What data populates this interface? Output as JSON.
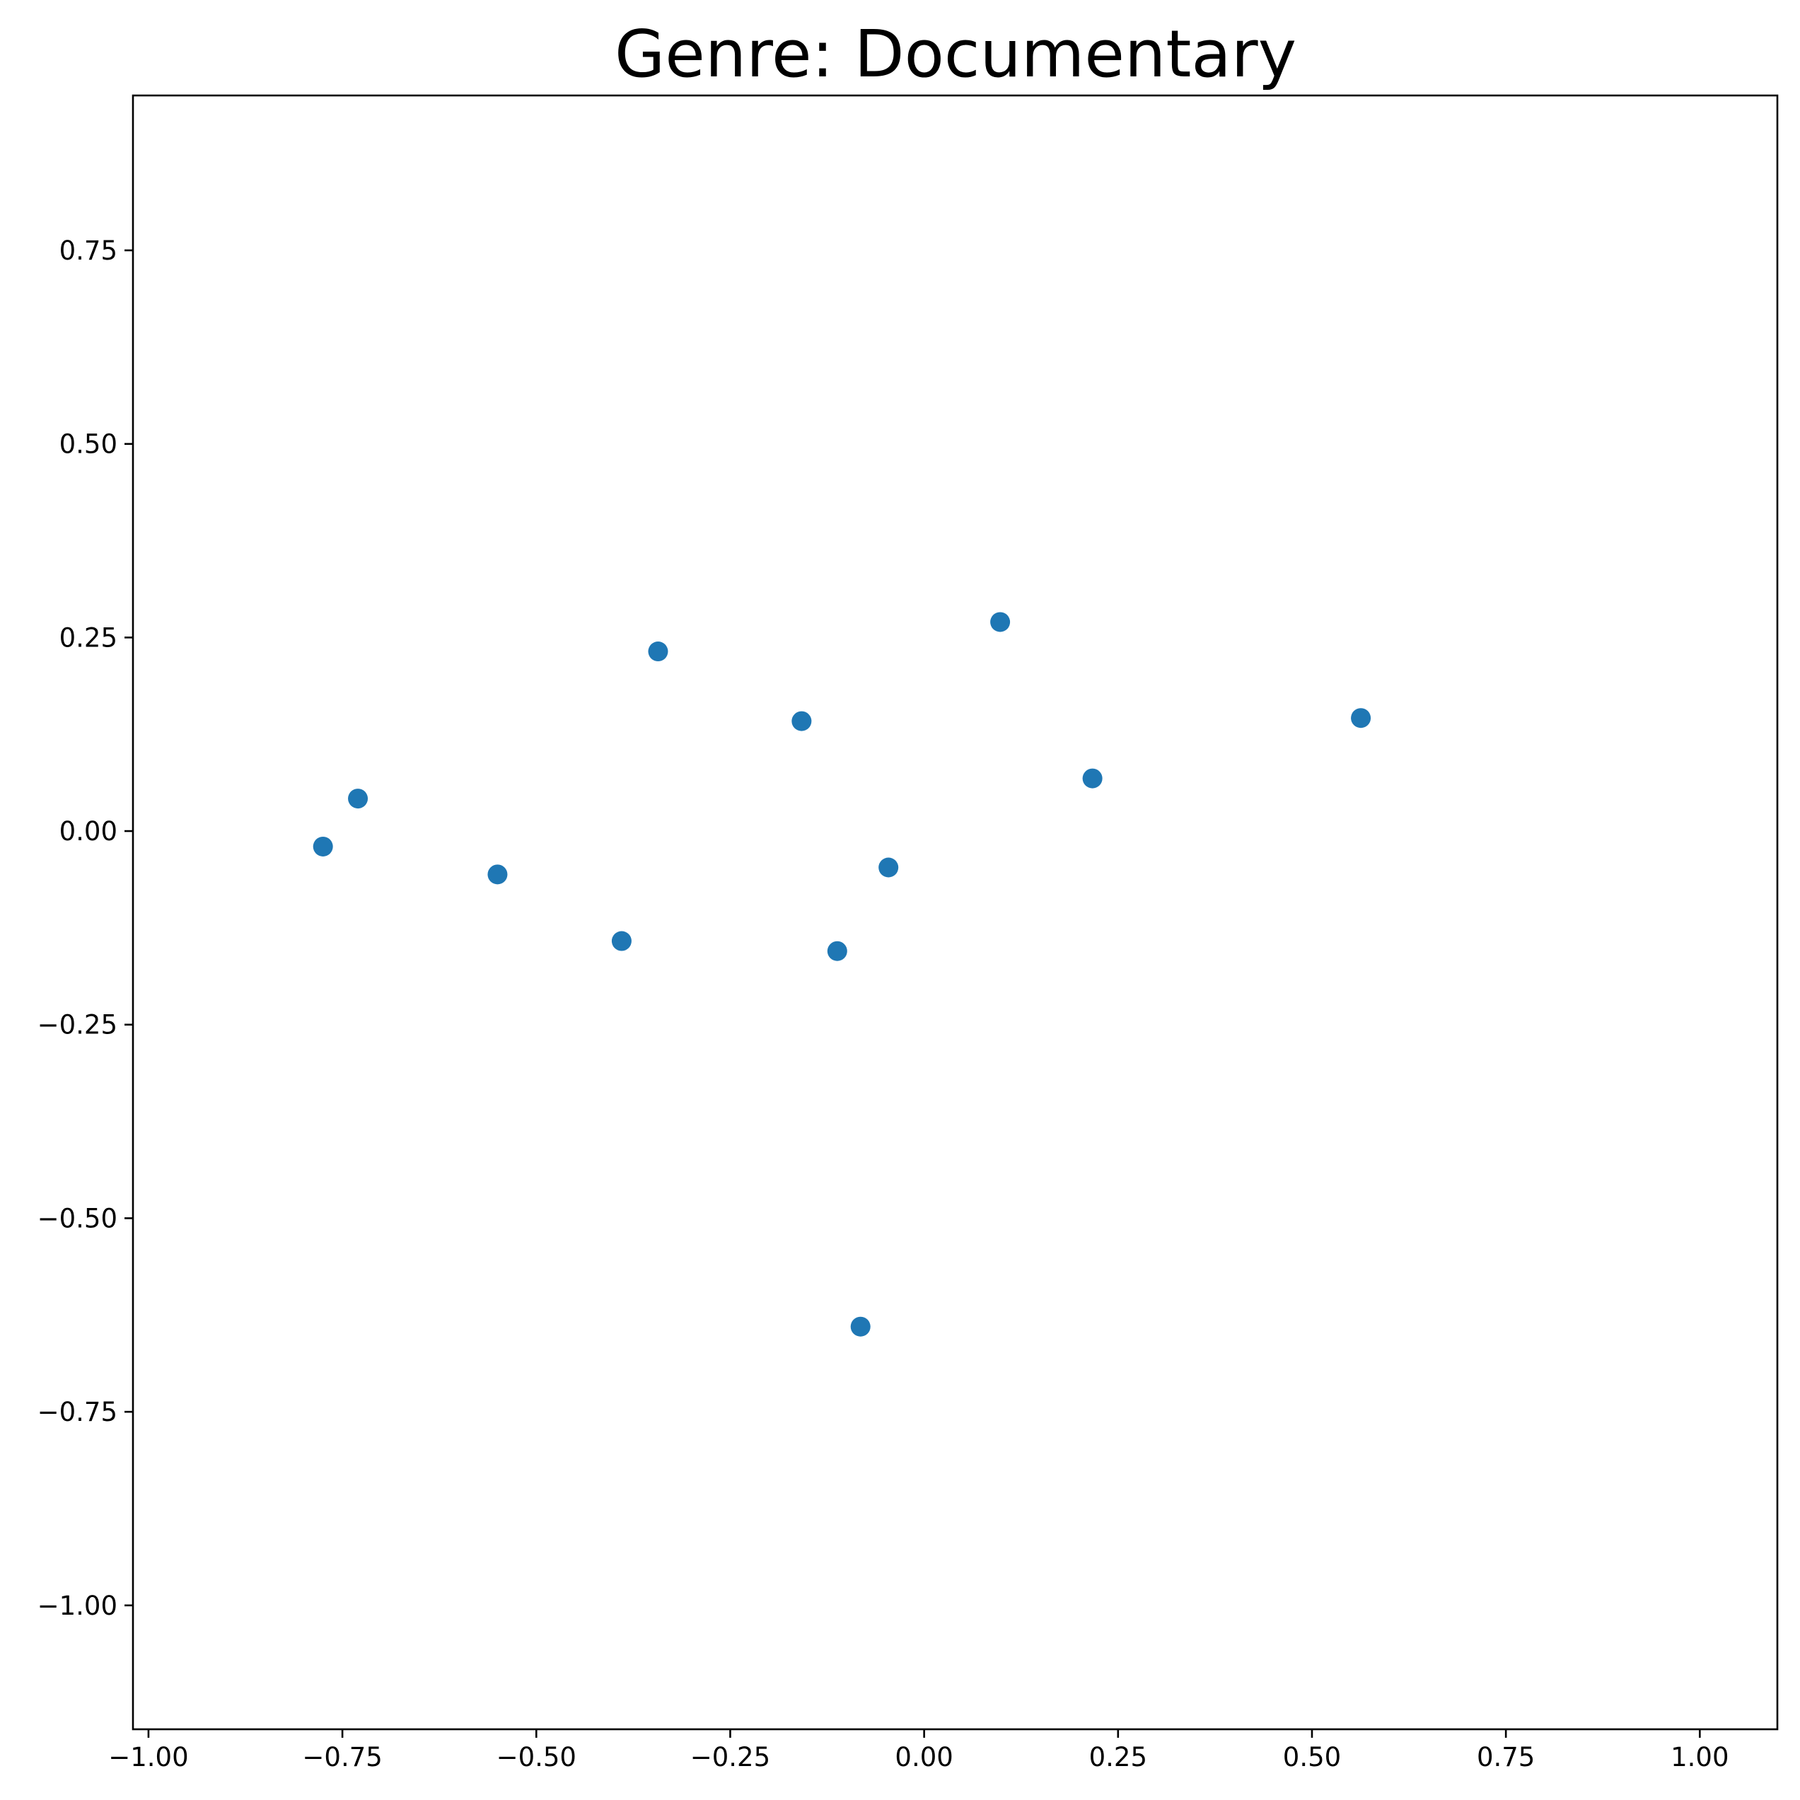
{
  "chart_data": {
    "type": "scatter",
    "title": "Genre: Documentary",
    "xlabel": "",
    "ylabel": "",
    "xlim": [
      -1.02,
      1.1
    ],
    "ylim": [
      -1.16,
      0.95
    ],
    "xticks": [
      {
        "value": -1.0,
        "label": "−1.00"
      },
      {
        "value": -0.75,
        "label": "−0.75"
      },
      {
        "value": -0.5,
        "label": "−0.50"
      },
      {
        "value": -0.25,
        "label": "−0.25"
      },
      {
        "value": 0.0,
        "label": "0.00"
      },
      {
        "value": 0.25,
        "label": "0.25"
      },
      {
        "value": 0.5,
        "label": "0.50"
      },
      {
        "value": 0.75,
        "label": "0.75"
      },
      {
        "value": 1.0,
        "label": "1.00"
      }
    ],
    "yticks": [
      {
        "value": 0.75,
        "label": "0.75"
      },
      {
        "value": 0.5,
        "label": "0.50"
      },
      {
        "value": 0.25,
        "label": "0.25"
      },
      {
        "value": 0.0,
        "label": "0.00"
      },
      {
        "value": -0.25,
        "label": "−0.25"
      },
      {
        "value": -0.5,
        "label": "−0.50"
      },
      {
        "value": -0.75,
        "label": "−0.75"
      },
      {
        "value": -1.0,
        "label": "−1.00"
      }
    ],
    "grid": false,
    "marker_color": "#1f77b4",
    "points": [
      {
        "x": -0.775,
        "y": -0.02
      },
      {
        "x": -0.73,
        "y": 0.042
      },
      {
        "x": -0.55,
        "y": -0.056
      },
      {
        "x": -0.39,
        "y": -0.142
      },
      {
        "x": -0.343,
        "y": 0.232
      },
      {
        "x": -0.158,
        "y": 0.142
      },
      {
        "x": -0.112,
        "y": -0.155
      },
      {
        "x": -0.046,
        "y": -0.047
      },
      {
        "x": -0.082,
        "y": -0.64
      },
      {
        "x": 0.098,
        "y": 0.27
      },
      {
        "x": 0.217,
        "y": 0.068
      },
      {
        "x": 0.563,
        "y": 0.146
      }
    ]
  }
}
